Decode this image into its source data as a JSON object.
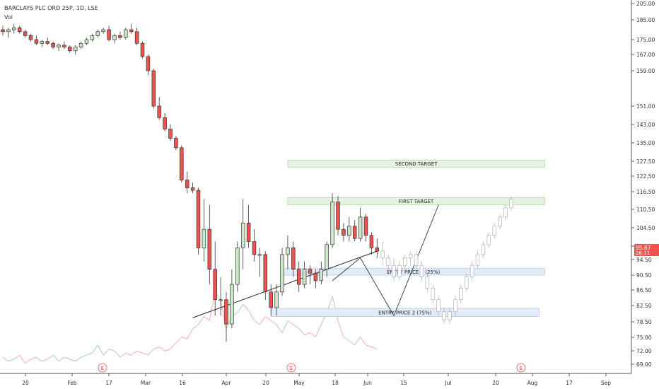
{
  "header": {
    "symbol_line": "BARCLAYS PLC ORD 25P, 1D, LSE",
    "volume_label": "Vol"
  },
  "price_tag": {
    "value": "95.87",
    "countdown": "26:11"
  },
  "colors": {
    "up": "#2e7d32",
    "down": "#d32f2f",
    "up_body": "#cde8c9",
    "down_body": "#ef5350",
    "ghost": "#b0b0b0"
  },
  "chart_data": {
    "type": "candlestick",
    "y_ticks": [
      "205.00",
      "185.00",
      "175.00",
      "167.00",
      "159.00",
      "151.00",
      "143.00",
      "135.00",
      "127.50",
      "122.50",
      "116.50",
      "110.50",
      "104.50",
      "98.50",
      "94.50",
      "90.50",
      "86.50",
      "82.50",
      "78.50",
      "75.00",
      "72.00",
      "69.00"
    ],
    "x_ticks": [
      "20",
      "Feb",
      "17",
      "Mar",
      "16",
      "Apr",
      "20",
      "May",
      "18",
      "Jun",
      "15",
      "Jul",
      "20",
      "Aug",
      "17",
      "Sep"
    ],
    "earnings_markers": [
      "E",
      "E",
      "E"
    ],
    "candles": [
      {
        "o": 180,
        "h": 182,
        "l": 177,
        "c": 179
      },
      {
        "o": 179,
        "h": 181,
        "l": 176,
        "c": 180
      },
      {
        "o": 180,
        "h": 183,
        "l": 178,
        "c": 181
      },
      {
        "o": 181,
        "h": 182,
        "l": 178,
        "c": 179
      },
      {
        "o": 179,
        "h": 180,
        "l": 176,
        "c": 177
      },
      {
        "o": 177,
        "h": 178,
        "l": 174,
        "c": 175
      },
      {
        "o": 175,
        "h": 177,
        "l": 172,
        "c": 173
      },
      {
        "o": 173,
        "h": 175,
        "l": 171,
        "c": 174
      },
      {
        "o": 174,
        "h": 176,
        "l": 172,
        "c": 173
      },
      {
        "o": 173,
        "h": 174,
        "l": 170,
        "c": 171
      },
      {
        "o": 171,
        "h": 173,
        "l": 169,
        "c": 172
      },
      {
        "o": 172,
        "h": 174,
        "l": 170,
        "c": 171
      },
      {
        "o": 171,
        "h": 172,
        "l": 168,
        "c": 169
      },
      {
        "o": 169,
        "h": 172,
        "l": 167,
        "c": 171
      },
      {
        "o": 171,
        "h": 174,
        "l": 170,
        "c": 173
      },
      {
        "o": 173,
        "h": 176,
        "l": 172,
        "c": 175
      },
      {
        "o": 175,
        "h": 178,
        "l": 174,
        "c": 177
      },
      {
        "o": 177,
        "h": 180,
        "l": 176,
        "c": 179
      },
      {
        "o": 179,
        "h": 181,
        "l": 178,
        "c": 180
      },
      {
        "o": 180,
        "h": 182,
        "l": 174,
        "c": 175
      },
      {
        "o": 175,
        "h": 178,
        "l": 173,
        "c": 177
      },
      {
        "o": 177,
        "h": 179,
        "l": 175,
        "c": 176
      },
      {
        "o": 176,
        "h": 181,
        "l": 175,
        "c": 180
      },
      {
        "o": 180,
        "h": 183,
        "l": 178,
        "c": 179
      },
      {
        "o": 179,
        "h": 181,
        "l": 172,
        "c": 173
      },
      {
        "o": 173,
        "h": 174,
        "l": 165,
        "c": 166
      },
      {
        "o": 166,
        "h": 167,
        "l": 158,
        "c": 159
      },
      {
        "o": 159,
        "h": 160,
        "l": 150,
        "c": 151
      },
      {
        "o": 151,
        "h": 153,
        "l": 145,
        "c": 146
      },
      {
        "o": 146,
        "h": 148,
        "l": 140,
        "c": 141
      },
      {
        "o": 141,
        "h": 143,
        "l": 136,
        "c": 137
      },
      {
        "o": 137,
        "h": 138,
        "l": 132,
        "c": 133
      },
      {
        "o": 133,
        "h": 134,
        "l": 120,
        "c": 121
      },
      {
        "o": 121,
        "h": 124,
        "l": 116,
        "c": 118
      },
      {
        "o": 118,
        "h": 120,
        "l": 116,
        "c": 117
      },
      {
        "o": 117,
        "h": 118,
        "l": 96,
        "c": 98
      },
      {
        "o": 98,
        "h": 114,
        "l": 94,
        "c": 104
      },
      {
        "o": 104,
        "h": 112,
        "l": 88,
        "c": 92
      },
      {
        "o": 92,
        "h": 100,
        "l": 80,
        "c": 84
      },
      {
        "o": 84,
        "h": 90,
        "l": 80,
        "c": 84
      },
      {
        "o": 84,
        "h": 86,
        "l": 74,
        "c": 78
      },
      {
        "o": 78,
        "h": 92,
        "l": 77,
        "c": 88
      },
      {
        "o": 88,
        "h": 100,
        "l": 86,
        "c": 98
      },
      {
        "o": 98,
        "h": 114,
        "l": 92,
        "c": 106
      },
      {
        "o": 106,
        "h": 112,
        "l": 98,
        "c": 100
      },
      {
        "o": 100,
        "h": 104,
        "l": 94,
        "c": 96
      },
      {
        "o": 96,
        "h": 98,
        "l": 90,
        "c": 96
      },
      {
        "o": 96,
        "h": 97,
        "l": 84,
        "c": 86
      },
      {
        "o": 86,
        "h": 88,
        "l": 80,
        "c": 82
      },
      {
        "o": 82,
        "h": 88,
        "l": 80,
        "c": 86
      },
      {
        "o": 86,
        "h": 98,
        "l": 85,
        "c": 96
      },
      {
        "o": 96,
        "h": 102,
        "l": 92,
        "c": 98
      },
      {
        "o": 98,
        "h": 100,
        "l": 90,
        "c": 92
      },
      {
        "o": 92,
        "h": 94,
        "l": 86,
        "c": 88
      },
      {
        "o": 88,
        "h": 94,
        "l": 87,
        "c": 92
      },
      {
        "o": 92,
        "h": 93,
        "l": 88,
        "c": 91
      },
      {
        "o": 91,
        "h": 92,
        "l": 87,
        "c": 89
      },
      {
        "o": 89,
        "h": 94,
        "l": 88,
        "c": 92
      },
      {
        "o": 92,
        "h": 100,
        "l": 90,
        "c": 99
      },
      {
        "o": 99,
        "h": 116,
        "l": 98,
        "c": 113
      },
      {
        "o": 113,
        "h": 115,
        "l": 102,
        "c": 104
      },
      {
        "o": 104,
        "h": 106,
        "l": 100,
        "c": 102
      },
      {
        "o": 102,
        "h": 108,
        "l": 100,
        "c": 105
      },
      {
        "o": 105,
        "h": 107,
        "l": 100,
        "c": 101
      },
      {
        "o": 101,
        "h": 111,
        "l": 100,
        "c": 108
      },
      {
        "o": 108,
        "h": 109,
        "l": 100,
        "c": 102
      },
      {
        "o": 102,
        "h": 103,
        "l": 96,
        "c": 98
      },
      {
        "o": 98,
        "h": 101,
        "l": 95,
        "c": 97
      }
    ],
    "projected_candles": [
      {
        "o": 97,
        "h": 100,
        "l": 93,
        "c": 95
      },
      {
        "o": 95,
        "h": 96,
        "l": 91,
        "c": 93
      },
      {
        "o": 93,
        "h": 95,
        "l": 89,
        "c": 90
      },
      {
        "o": 90,
        "h": 94,
        "l": 89,
        "c": 93
      },
      {
        "o": 93,
        "h": 96,
        "l": 92,
        "c": 95
      },
      {
        "o": 95,
        "h": 97,
        "l": 93,
        "c": 96
      },
      {
        "o": 96,
        "h": 97,
        "l": 92,
        "c": 93
      },
      {
        "o": 93,
        "h": 94,
        "l": 89,
        "c": 90
      },
      {
        "o": 90,
        "h": 91,
        "l": 86,
        "c": 87
      },
      {
        "o": 87,
        "h": 88,
        "l": 83,
        "c": 84
      },
      {
        "o": 84,
        "h": 85,
        "l": 80,
        "c": 81
      },
      {
        "o": 81,
        "h": 82,
        "l": 78,
        "c": 79
      },
      {
        "o": 79,
        "h": 82,
        "l": 78,
        "c": 81
      },
      {
        "o": 81,
        "h": 85,
        "l": 80,
        "c": 84
      },
      {
        "o": 84,
        "h": 88,
        "l": 83,
        "c": 87
      },
      {
        "o": 87,
        "h": 91,
        "l": 86,
        "c": 90
      },
      {
        "o": 90,
        "h": 94,
        "l": 89,
        "c": 93
      },
      {
        "o": 93,
        "h": 97,
        "l": 92,
        "c": 96
      },
      {
        "o": 96,
        "h": 100,
        "l": 95,
        "c": 99
      },
      {
        "o": 99,
        "h": 103,
        "l": 98,
        "c": 102
      },
      {
        "o": 102,
        "h": 106,
        "l": 101,
        "c": 105
      },
      {
        "o": 105,
        "h": 109,
        "l": 104,
        "c": 108
      },
      {
        "o": 108,
        "h": 112,
        "l": 107,
        "c": 111
      },
      {
        "o": 111,
        "h": 115,
        "l": 110,
        "c": 114
      }
    ],
    "volume": [
      8,
      6,
      7,
      9,
      5,
      7,
      8,
      6,
      7,
      9,
      6,
      8,
      7,
      6,
      8,
      9,
      10,
      14,
      9,
      12,
      11,
      8,
      10,
      9,
      11,
      10,
      9,
      12,
      13,
      11,
      12,
      15,
      18,
      17,
      22,
      24,
      28,
      26,
      40,
      36,
      22,
      28,
      30,
      34,
      31,
      26,
      24,
      28,
      26,
      24,
      20,
      26,
      24,
      22,
      19,
      20,
      18,
      24,
      30,
      38,
      26,
      18,
      16,
      14,
      18,
      14,
      13,
      12
    ],
    "zones": [
      {
        "label": "SECOND TARGET",
        "top": 128,
        "bottom": 125.5,
        "from": 51,
        "to": 97,
        "kind": "target"
      },
      {
        "label": "FIRST TARGET",
        "top": 114.5,
        "bottom": 112,
        "from": 51,
        "to": 97,
        "kind": "target"
      },
      {
        "label": "ENTRY PRICE 1 (25%)",
        "top": 92.2,
        "bottom": 90.5,
        "from": 50,
        "to": 97,
        "kind": "entry"
      },
      {
        "label": "ENTRY PRICE 2 (75%)",
        "top": 81.8,
        "bottom": 79.8,
        "from": 48,
        "to": 96,
        "kind": "entry"
      }
    ],
    "trendline": [
      [
        34,
        79.5
      ],
      [
        67,
        97
      ]
    ],
    "projection_path": [
      [
        59,
        89
      ],
      [
        64,
        95
      ],
      [
        70,
        80
      ],
      [
        78,
        112
      ]
    ]
  }
}
